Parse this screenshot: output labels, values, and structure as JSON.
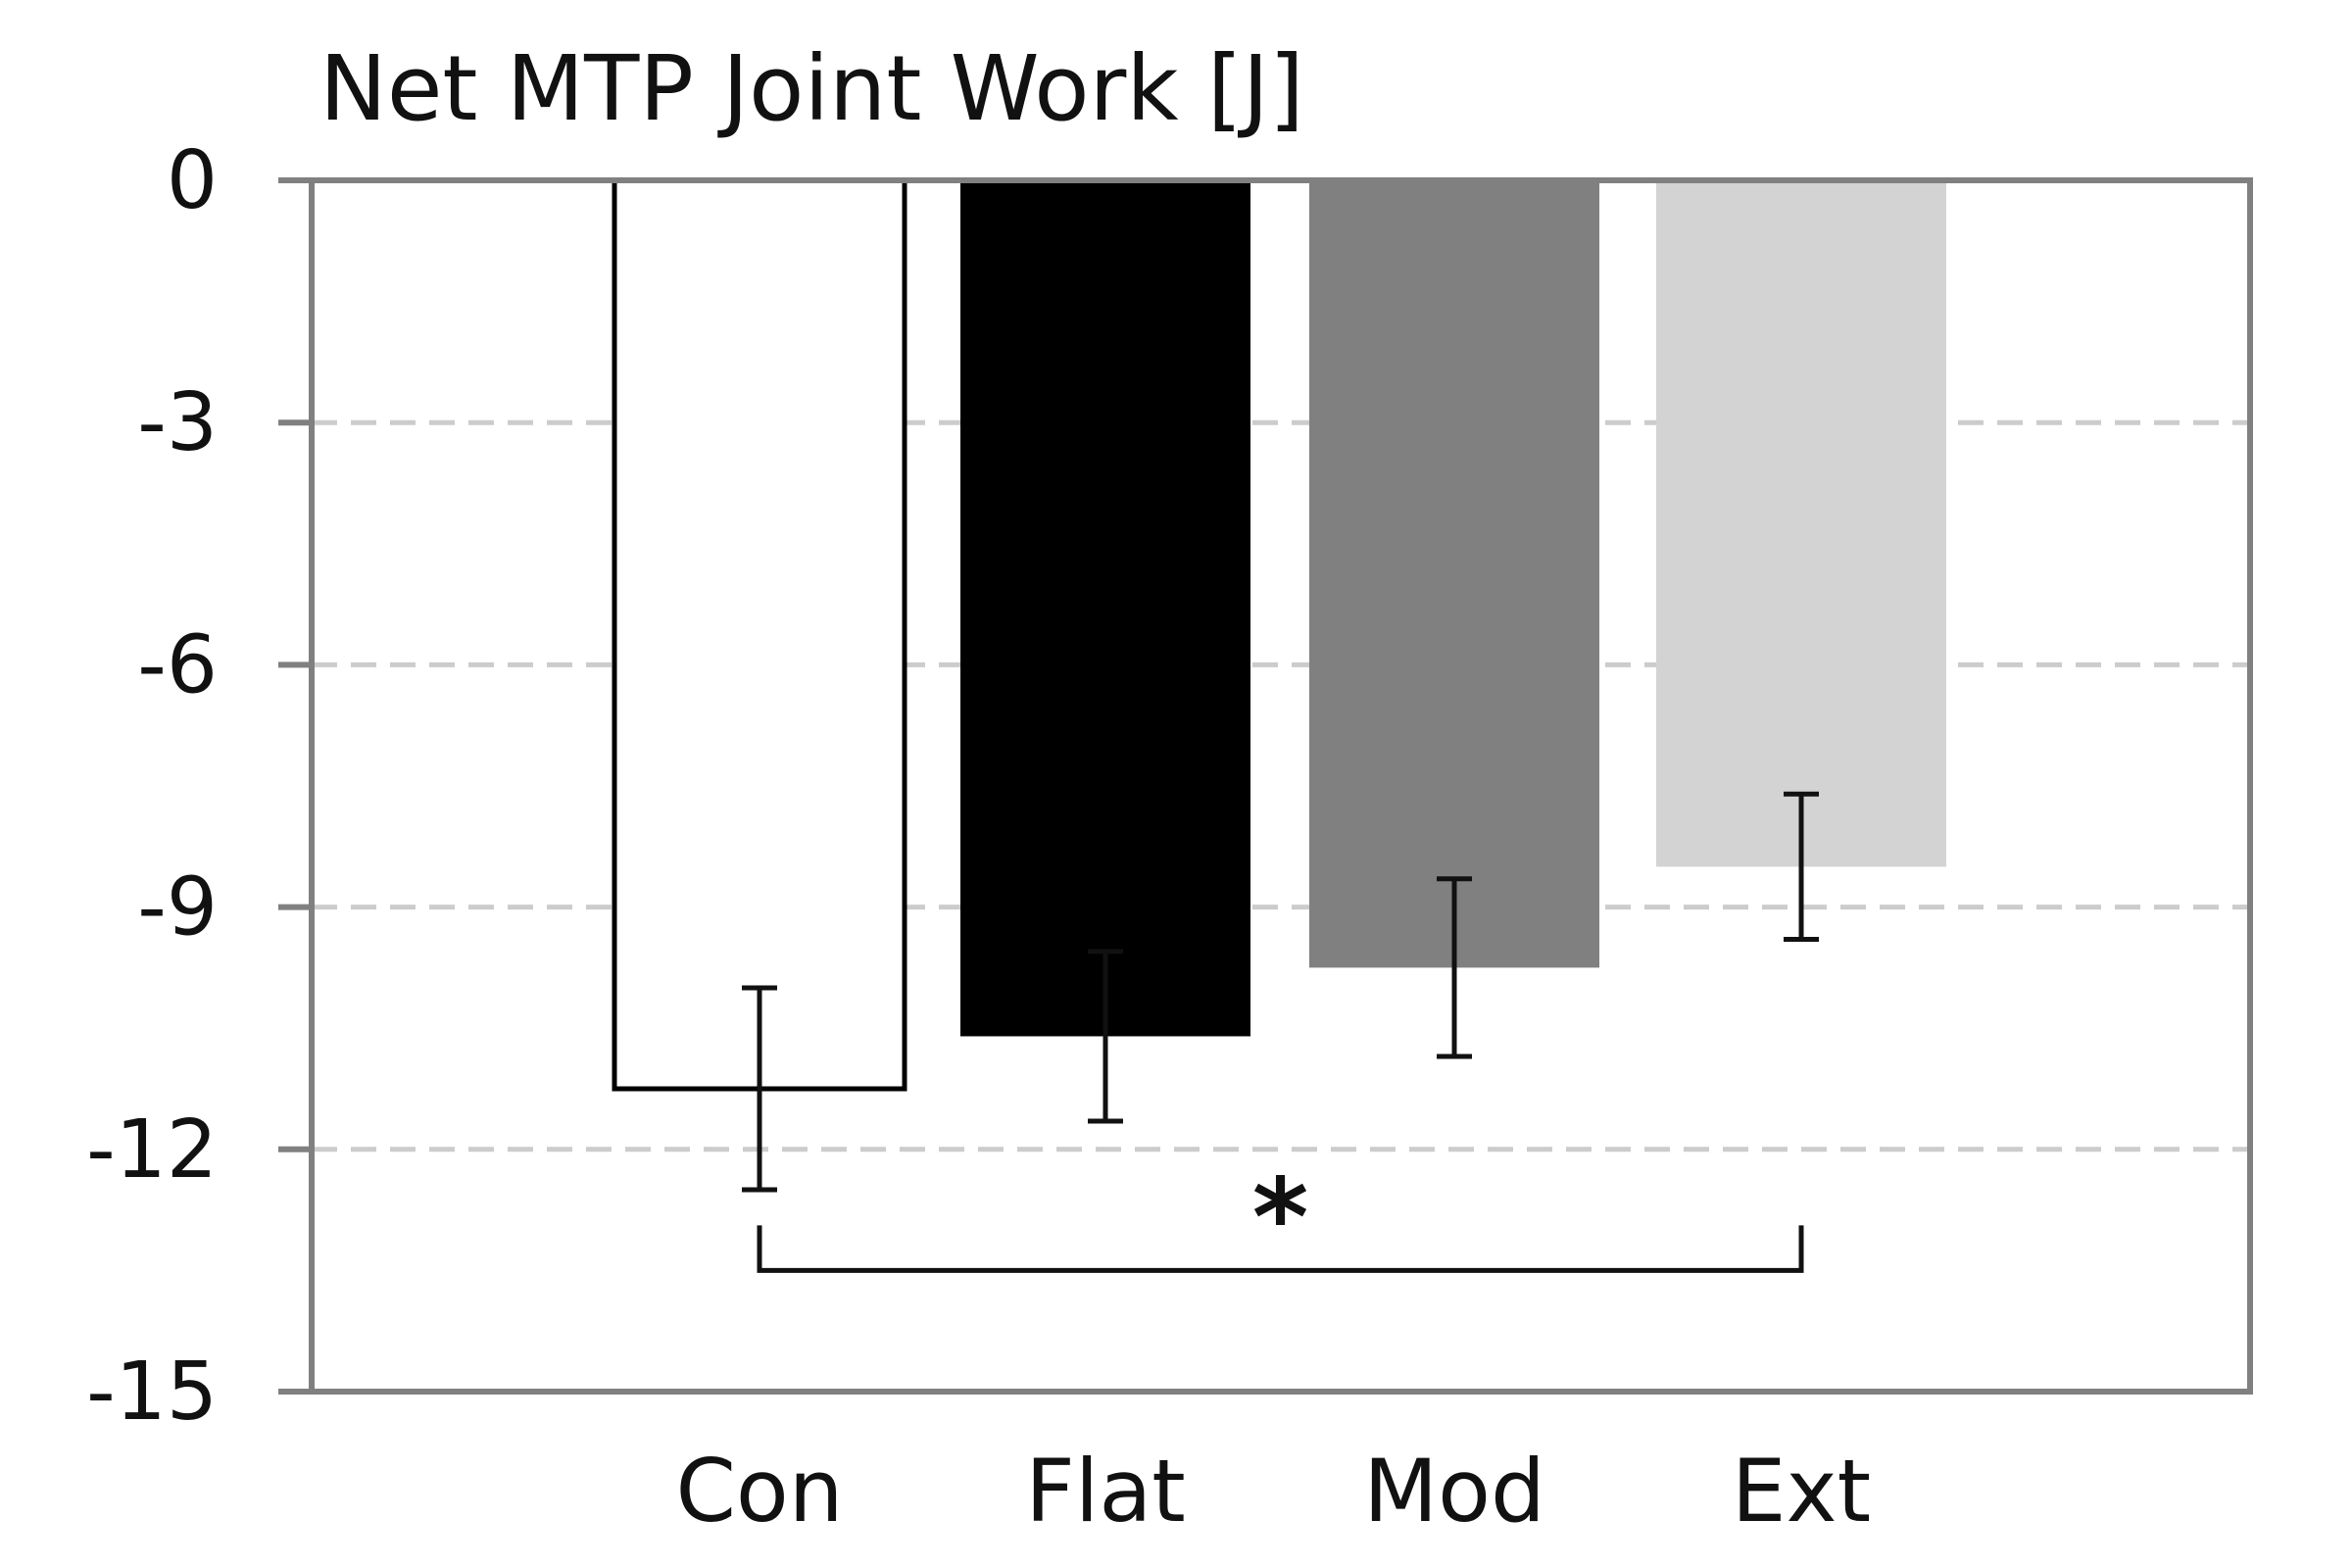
{
  "chart_data": {
    "type": "bar",
    "title": "Net MTP Joint Work [J]",
    "xlabel": "",
    "ylabel": "",
    "categories": [
      "Con",
      "Flat",
      "Mod",
      "Ext"
    ],
    "values": [
      -11.25,
      -10.6,
      -9.75,
      -8.5
    ],
    "error": [
      1.25,
      1.05,
      1.1,
      0.9
    ],
    "bar_colors": [
      "#ffffff",
      "#000000",
      "#808080",
      "#d3d3d3"
    ],
    "bar_outline": [
      "#000000",
      "none",
      "none",
      "none"
    ],
    "ylim": [
      -15,
      0
    ],
    "yticks": [
      0,
      -3,
      -6,
      -9,
      -12,
      -15
    ],
    "ytick_labels": [
      "0",
      "-3",
      "-6",
      "-9",
      "-12",
      "-15"
    ],
    "grid": true,
    "grid_style": "dashed",
    "grid_color": "#cccccc",
    "frame_color": "#808080",
    "significance": {
      "label": "*",
      "from": "Con",
      "to": "Ext",
      "level": -13.5
    }
  }
}
